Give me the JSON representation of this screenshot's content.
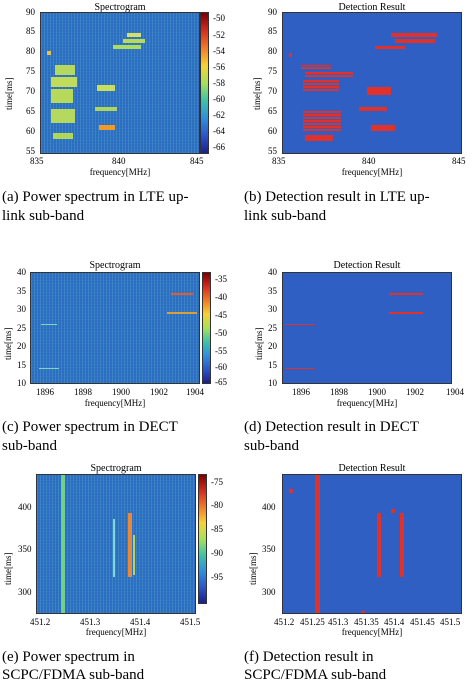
{
  "figure": {
    "panel_a": {
      "title": "Spectrogram",
      "x_ticks": [
        "835",
        "840",
        "845"
      ],
      "y_ticks": [
        "90",
        "85",
        "80",
        "75",
        "70",
        "65",
        "60",
        "55"
      ],
      "ylabel": "time[ms]",
      "xlabel": "frequency[MHz]",
      "colorbar_ticks": [
        "-50",
        "-52",
        "-54",
        "-56",
        "-58",
        "-60",
        "-62",
        "-64",
        "-66"
      ],
      "caption_line1": "(a) Power spectrum in LTE up-",
      "caption_line2": "link sub-band"
    },
    "panel_b": {
      "title": "Detection Result",
      "x_ticks": [
        "835",
        "840",
        "845"
      ],
      "y_ticks": [
        "90",
        "85",
        "80",
        "75",
        "70",
        "65",
        "60",
        "55"
      ],
      "ylabel": "time[ms]",
      "xlabel": "frequency[MHz]",
      "caption_line1": "(b) Detection result in LTE up-",
      "caption_line2": "link sub-band"
    },
    "panel_c": {
      "title": "Spectrogram",
      "x_ticks": [
        "1896",
        "1898",
        "1900",
        "1902",
        "1904"
      ],
      "y_ticks": [
        "40",
        "35",
        "30",
        "25",
        "20",
        "15",
        "10"
      ],
      "ylabel": "time[ms]",
      "xlabel": "frequency[MHz]",
      "colorbar_ticks": [
        "-35",
        "-40",
        "-45",
        "-50",
        "-55",
        "-60",
        "-65"
      ],
      "caption_line1": "(c) Power spectrum in DECT",
      "caption_line2": "sub-band"
    },
    "panel_d": {
      "title": "Detection Result",
      "x_ticks": [
        "1896",
        "1898",
        "1900",
        "1902",
        "1904"
      ],
      "y_ticks": [
        "40",
        "35",
        "30",
        "25",
        "20",
        "15",
        "10"
      ],
      "ylabel": "time[ms]",
      "xlabel": "frequency[MHz]",
      "caption_line1": "(d) Detection result in DECT",
      "caption_line2": "sub-band"
    },
    "panel_e": {
      "title": "Spectrogram",
      "x_ticks": [
        "451.2",
        "451.3",
        "451.4",
        "451.5"
      ],
      "y_ticks": [
        "400",
        "350",
        "300"
      ],
      "ylabel": "time[ms]",
      "xlabel": "frequency[MHz]",
      "colorbar_ticks": [
        "-75",
        "-80",
        "-85",
        "-90",
        "-95"
      ],
      "caption_line1": "(e)    Power    spectrum    in",
      "caption_line2": "SCPC/FDMA sub-band"
    },
    "panel_f": {
      "title": "Detection Result",
      "x_ticks": [
        "451.2",
        "451.25",
        "451.3",
        "451.35",
        "451.4",
        "451.45",
        "451.5"
      ],
      "y_ticks": [
        "400",
        "350",
        "300"
      ],
      "ylabel": "time[ms]",
      "xlabel": "frequency[MHz]",
      "caption_line1": "(f)    Detection    result    in",
      "caption_line2": "SCPC/FDMA sub-band"
    }
  },
  "colors": {
    "background_blue": "#2f5fc2",
    "detection_red": "#e0312b",
    "spectrum_yellow": "#c9e05a",
    "spectrum_orange": "#f08a2a"
  }
}
